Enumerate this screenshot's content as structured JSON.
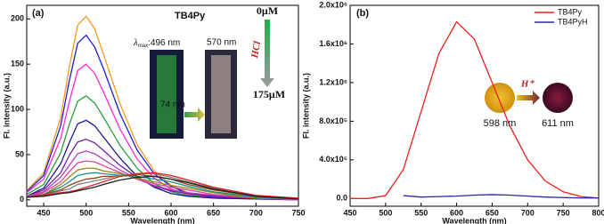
{
  "chart_data": [
    {
      "type": "line",
      "x_label": "Wavelength (nm)",
      "y_label": "Fl. intensity (a.u.)",
      "x": [
        430,
        450,
        470,
        480,
        490,
        500,
        510,
        520,
        540,
        560,
        580,
        600,
        620,
        650,
        700,
        750
      ],
      "xlim": [
        430,
        750
      ],
      "xticks": [
        450,
        500,
        550,
        600,
        650,
        700,
        750
      ],
      "ylim": [
        -7,
        215
      ],
      "yticks": [
        0,
        50,
        100,
        150,
        200
      ],
      "annotations": [
        "(a)",
        "TB4Py",
        "λ",
        "max",
        ":496 nm",
        "570 nm",
        "74 nm",
        "0μM",
        "HCl",
        "175μM"
      ],
      "series": [
        {
          "color": "#f59a23",
          "values": [
            10,
            30,
            91,
            146,
            193,
            203,
            189,
            162,
            106,
            61,
            32,
            16,
            8,
            4,
            2,
            1
          ]
        },
        {
          "color": "#1f1fd6",
          "values": [
            9,
            27,
            82,
            131,
            173,
            182,
            169,
            146,
            95,
            55,
            29,
            15,
            7,
            4,
            2,
            1
          ]
        },
        {
          "color": "#ff2ad4",
          "values": [
            8,
            23,
            68,
            108,
            143,
            150,
            140,
            120,
            78,
            45,
            24,
            12,
            6,
            3,
            2,
            1
          ]
        },
        {
          "color": "#2a9d3a",
          "values": [
            6,
            17,
            52,
            83,
            109,
            115,
            107,
            92,
            60,
            35,
            18,
            9,
            5,
            2,
            1,
            1
          ]
        },
        {
          "color": "#1a1a8c",
          "values": [
            4,
            13,
            40,
            63,
            84,
            88,
            82,
            70,
            46,
            26,
            14,
            7,
            4,
            2,
            1,
            0
          ]
        },
        {
          "color": "#7a1fa2",
          "values": [
            4,
            11,
            30,
            49,
            64,
            67,
            63,
            55,
            38,
            25,
            15,
            10,
            7,
            3,
            2,
            0
          ]
        },
        {
          "color": "#b040c0",
          "values": [
            4,
            9,
            25,
            38,
            51,
            54,
            51,
            45,
            33,
            23,
            16,
            11,
            8,
            5,
            2,
            0
          ]
        },
        {
          "color": "#e0409a",
          "values": [
            3,
            8,
            20,
            31,
            41,
            43,
            42,
            38,
            30,
            23,
            18,
            14,
            11,
            6,
            2,
            1
          ]
        },
        {
          "color": "#8c8c1a",
          "values": [
            3,
            6,
            17,
            25,
            33,
            35,
            35,
            32,
            29,
            24,
            20,
            16,
            13,
            8,
            2,
            1
          ]
        },
        {
          "color": "#1a8c8c",
          "values": [
            3,
            6,
            14,
            20,
            27,
            29,
            30,
            29,
            27,
            26,
            23,
            20,
            15,
            9,
            3,
            1
          ]
        },
        {
          "color": "#8b4513",
          "values": [
            3,
            6,
            11,
            16,
            20,
            23,
            24,
            26,
            26,
            28,
            26,
            23,
            17,
            11,
            4,
            1
          ]
        },
        {
          "color": "#808080",
          "values": [
            3,
            5,
            10,
            12,
            17,
            19,
            21,
            23,
            27,
            29,
            29,
            25,
            20,
            13,
            4,
            1
          ]
        },
        {
          "color": "#e02020",
          "values": [
            3,
            5,
            8,
            9,
            11,
            14,
            17,
            20,
            26,
            29,
            30,
            27,
            22,
            14,
            5,
            2
          ]
        },
        {
          "color": "#202020",
          "values": [
            3,
            4,
            7,
            8,
            10,
            12,
            14,
            17,
            22,
            25,
            26,
            23,
            19,
            12,
            4,
            1
          ]
        }
      ]
    },
    {
      "type": "line",
      "x_label": "Wavelength (nm)",
      "y_label": "Fl. intensity (a.u.)",
      "x": [
        450,
        475,
        500,
        525,
        550,
        575,
        600,
        625,
        650,
        675,
        700,
        725,
        750,
        775,
        800
      ],
      "xlim": [
        450,
        800
      ],
      "xticks": [
        450,
        500,
        550,
        600,
        650,
        700,
        750,
        800
      ],
      "ylim": [
        -80000,
        2000000
      ],
      "yticks": [
        {
          "value": 0,
          "label": "0.0"
        },
        {
          "value": 400000,
          "label": "4.0x10⁵"
        },
        {
          "value": 800000,
          "label": "8.0x10⁵"
        },
        {
          "value": 1200000,
          "label": "1.2x10⁶"
        },
        {
          "value": 1600000,
          "label": "1.6x10⁶"
        },
        {
          "value": 2000000,
          "label": "2.0x10⁶"
        }
      ],
      "annotations": [
        "(b)",
        "H⁺",
        "598 nm",
        "611 nm"
      ],
      "legend": "upper right",
      "series": [
        {
          "name": "TB4Py",
          "color": "#e8201e",
          "values": [
            0,
            0,
            30000,
            300000,
            900000,
            1500000,
            1830000,
            1650000,
            1200000,
            750000,
            400000,
            180000,
            70000,
            20000,
            5000
          ]
        },
        {
          "name": "TB4PyH",
          "color": "#2a2a9a",
          "values": [
            null,
            null,
            null,
            30000,
            15000,
            20000,
            25000,
            35000,
            40000,
            35000,
            25000,
            15000,
            10000,
            5000,
            5000
          ]
        }
      ]
    }
  ]
}
